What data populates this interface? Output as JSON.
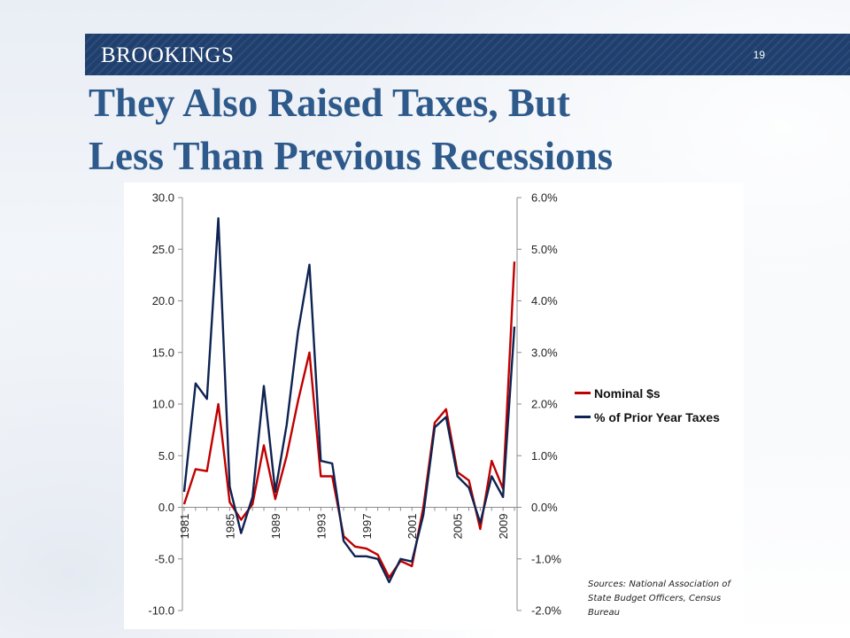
{
  "slide": {
    "brand": "BROOKINGS",
    "page_number": "19",
    "title_line1": "They Also Raised Taxes, But",
    "title_line2": "Less Than Previous Recessions",
    "sources": "Sources: National Association of State Budget Officers, Census Bureau"
  },
  "colors": {
    "banner": "#1f3f6e",
    "title": "#2e5a8b",
    "nominal": "#c00000",
    "percent": "#0e2352"
  },
  "chart_data": {
    "type": "line",
    "x": [
      1981,
      1982,
      1983,
      1984,
      1985,
      1986,
      1987,
      1988,
      1989,
      1990,
      1991,
      1992,
      1993,
      1994,
      1995,
      1996,
      1997,
      1998,
      1999,
      2000,
      2001,
      2002,
      2003,
      2004,
      2005,
      2006,
      2007,
      2008,
      2009,
      2010
    ],
    "x_tick_labels": [
      "1981",
      "1985",
      "1989",
      "1993",
      "1997",
      "2001",
      "2005",
      "2009"
    ],
    "y_left_ticks": [
      "30.0",
      "25.0",
      "20.0",
      "15.0",
      "10.0",
      "5.0",
      "0.0",
      "-5.0",
      "-10.0"
    ],
    "y_right_ticks": [
      "6.0%",
      "5.0%",
      "4.0%",
      "3.0%",
      "2.0%",
      "1.0%",
      "0.0%",
      "-1.0%",
      "-2.0%"
    ],
    "ylim_left": [
      -10,
      30
    ],
    "ylim_right": [
      -2,
      6
    ],
    "series": [
      {
        "name": "Nominal $s",
        "axis": "left",
        "values": [
          0.3,
          3.7,
          3.5,
          10.0,
          0.5,
          -1.2,
          0.3,
          6.0,
          0.8,
          5.0,
          10.3,
          15.0,
          3.0,
          3.0,
          -2.8,
          -3.8,
          -4.0,
          -4.6,
          -6.8,
          -5.2,
          -5.7,
          0.0,
          8.2,
          9.5,
          3.4,
          2.6,
          -2.1,
          4.5,
          1.8,
          23.8
        ]
      },
      {
        "name": "% of Prior Year Taxes",
        "axis": "right",
        "values": [
          0.3,
          2.4,
          2.1,
          5.6,
          0.4,
          -0.5,
          0.2,
          2.35,
          0.3,
          1.6,
          3.4,
          4.7,
          0.9,
          0.85,
          -0.65,
          -0.95,
          -0.95,
          -1.0,
          -1.45,
          -1.0,
          -1.05,
          -0.15,
          1.55,
          1.75,
          0.6,
          0.38,
          -0.3,
          0.6,
          0.2,
          3.5
        ]
      }
    ],
    "legend_position": "right",
    "grid": false
  }
}
